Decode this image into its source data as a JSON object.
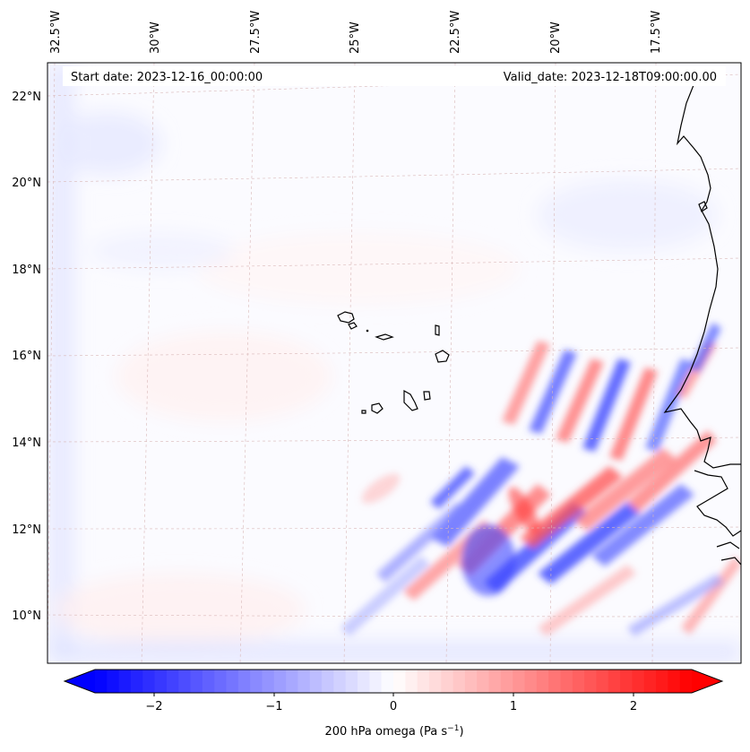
{
  "map": {
    "start_label": "Start date: 2023-12-16_00:00:00",
    "valid_label": "Valid_date: 2023-12-18T09:00:00.00",
    "lon_labels": [
      "32.5°W",
      "30°W",
      "27.5°W",
      "25°W",
      "22.5°W",
      "20°W",
      "17.5°W"
    ],
    "lat_labels": [
      "22°N",
      "20°N",
      "18°N",
      "16°N",
      "14°N",
      "12°N",
      "10°N"
    ],
    "colors": {
      "negative": "#0000ff",
      "positive": "#ff0000",
      "neutral": "#ffffff",
      "coastline": "#000000",
      "gridline": "#d9b8b8"
    }
  },
  "colorbar": {
    "label": "200 hPa omega (Pa s",
    "label_exponent": "−1",
    "label_close": ")",
    "ticks": [
      "−2",
      "−1",
      "0",
      "1",
      "2"
    ],
    "range": [
      -2.7,
      2.7
    ]
  }
}
